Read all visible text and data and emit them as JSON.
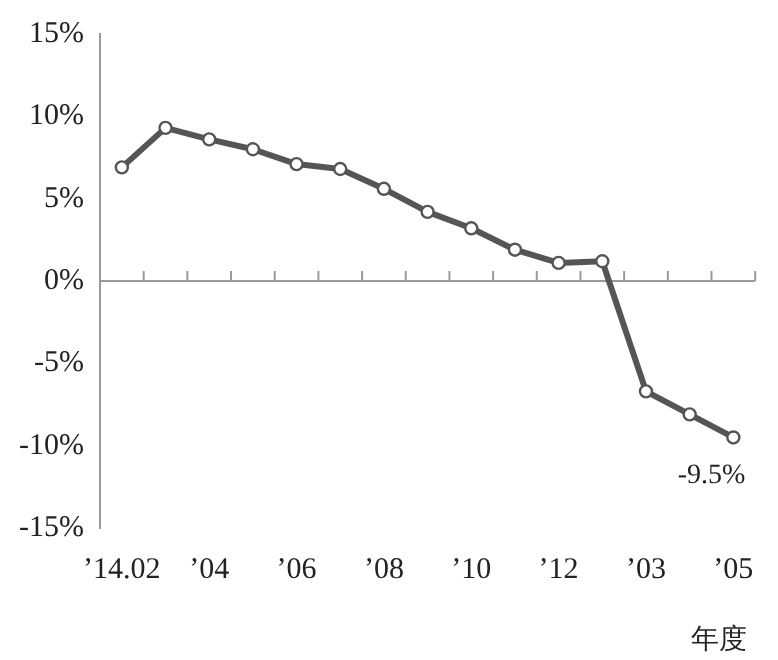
{
  "chart_data": {
    "type": "line",
    "categories": [
      "’14.02",
      null,
      "’04",
      null,
      "’06",
      null,
      "’08",
      null,
      "’10",
      null,
      "’12",
      null,
      "’03",
      null,
      "’05"
    ],
    "series": [
      {
        "color": "#555555",
        "values": [
          6.9,
          9.3,
          8.6,
          8.0,
          7.1,
          6.8,
          5.6,
          4.2,
          3.2,
          1.9,
          1.1,
          1.2,
          -6.7,
          -8.1,
          -9.5
        ]
      }
    ],
    "ylim": [
      -15,
      15
    ],
    "yticks": [
      {
        "value": -15,
        "label": "-15%"
      },
      {
        "value": -10,
        "label": "-10%"
      },
      {
        "value": -5,
        "label": "-5%"
      },
      {
        "value": 0,
        "label": "0%"
      },
      {
        "value": 5,
        "label": "5%"
      },
      {
        "value": 10,
        "label": "10%"
      },
      {
        "value": 15,
        "label": "15%"
      }
    ],
    "xlabel": "年度",
    "annotations": [
      {
        "text": "-9.5%",
        "x": "’05",
        "y": -9.5
      }
    ],
    "ref_lines": [
      {
        "axis": "y",
        "value": 0,
        "color": "#999999"
      }
    ],
    "marker": "circle",
    "line_style": "solid",
    "grid": false,
    "legend": false
  }
}
